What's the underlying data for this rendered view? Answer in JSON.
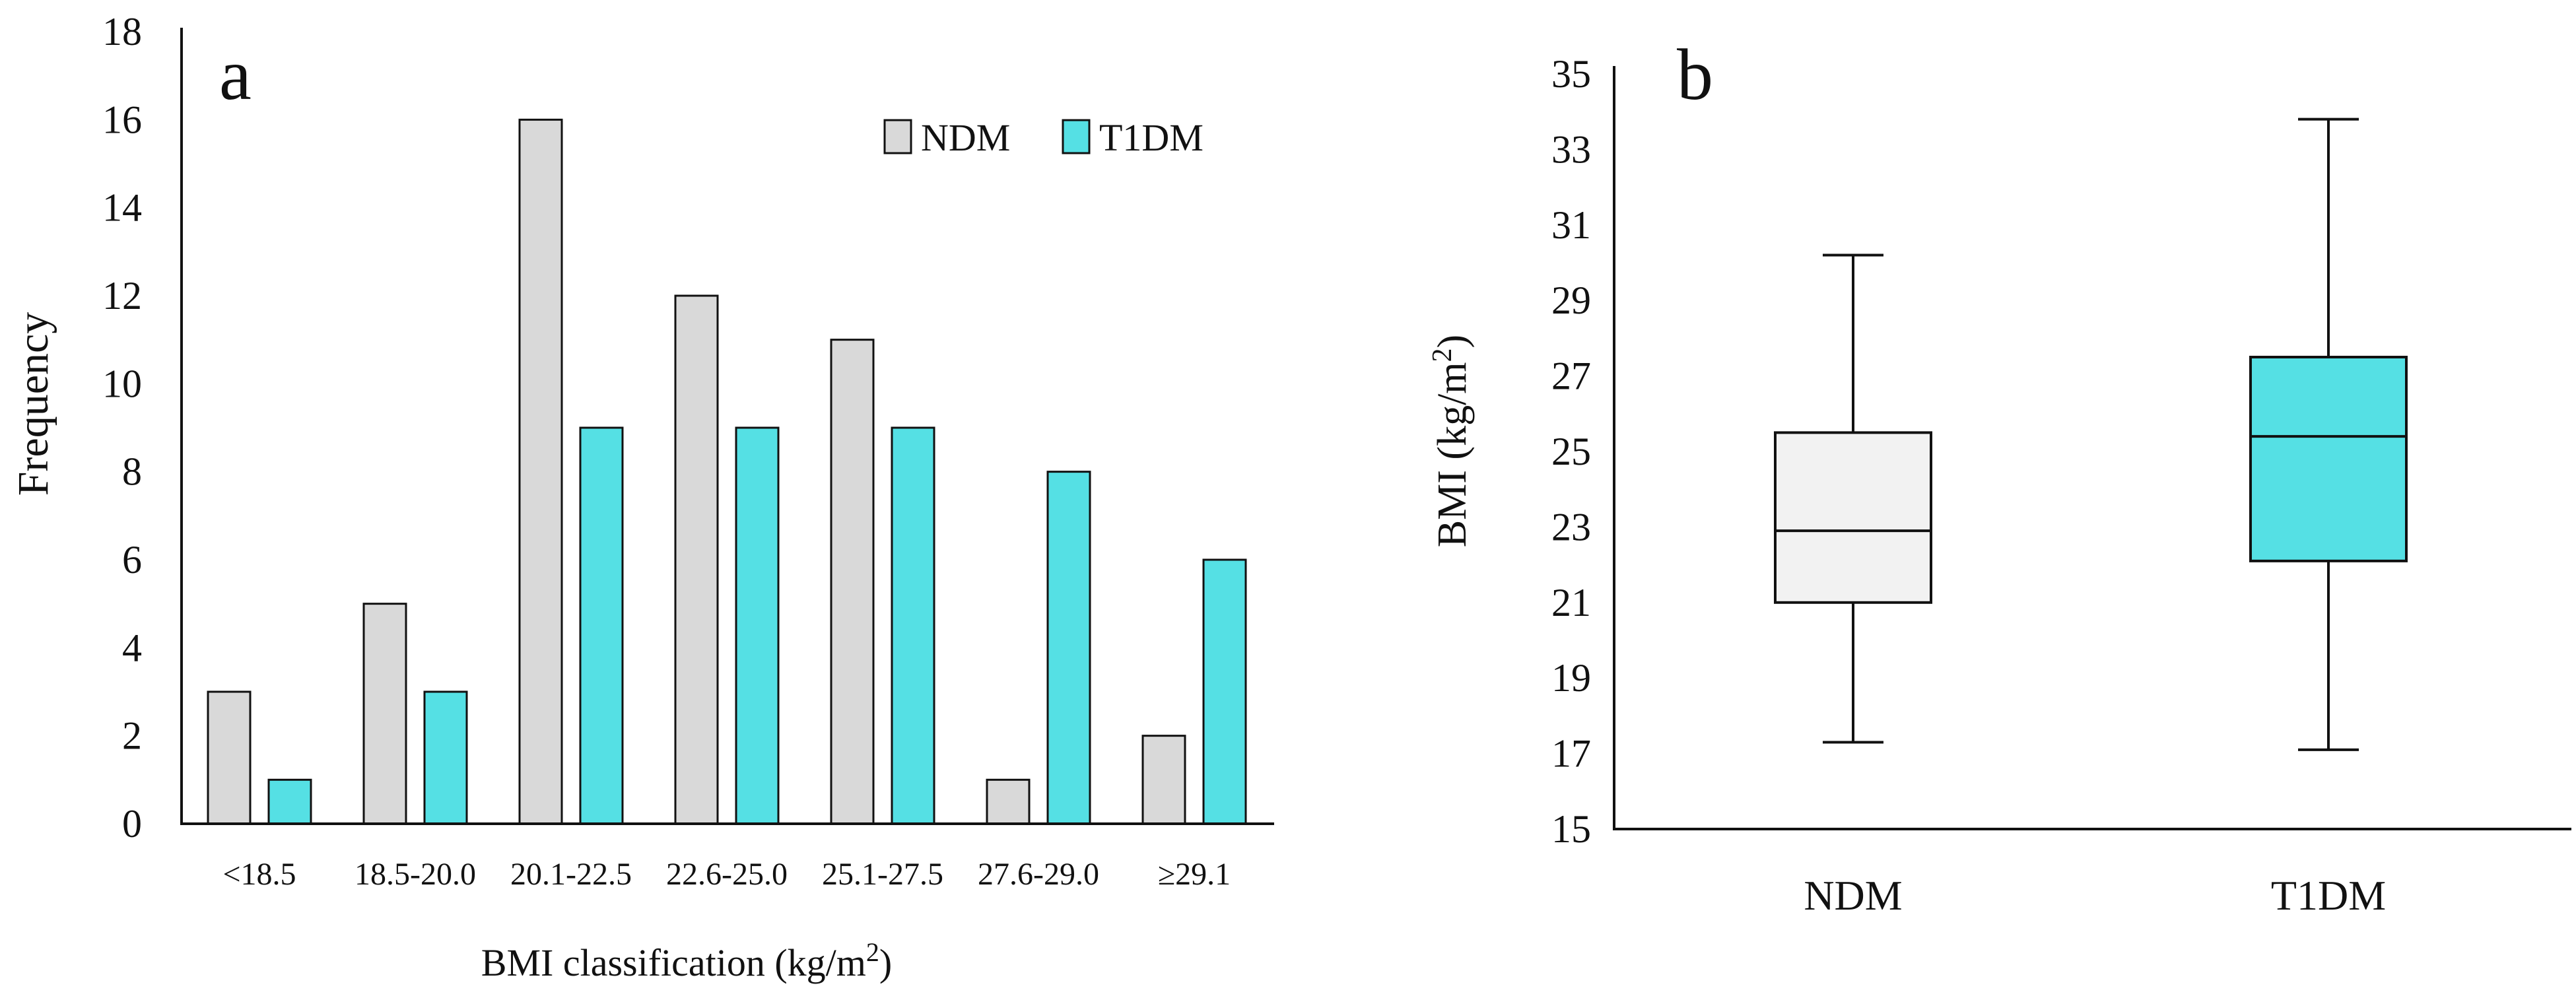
{
  "colors": {
    "ndm_bar": "#d9d9d9",
    "t1dm_bar": "#55e0e4",
    "ndm_box": "#f2f2f2",
    "t1dm_box": "#55e0e4",
    "stroke": "#111111"
  },
  "chart_data": [
    {
      "type": "bar",
      "panel_label": "a",
      "categories": [
        "<18.5",
        "18.5-20.0",
        "20.1-22.5",
        "22.6-25.0",
        "25.1-27.5",
        "27.6-29.0",
        "≥29.1"
      ],
      "series": [
        {
          "name": "NDM",
          "values": [
            3,
            5,
            16,
            12,
            11,
            1,
            2
          ]
        },
        {
          "name": "T1DM",
          "values": [
            1,
            3,
            9,
            9,
            9,
            8,
            6
          ]
        }
      ],
      "ylabel": "Frequency",
      "xlabel": "BMI classification (kg/m",
      "xlabel_superscript": "2",
      "xlabel_suffix": ")",
      "ylim": [
        0,
        18
      ],
      "yticks": [
        "0",
        "2",
        "4",
        "6",
        "8",
        "10",
        "12",
        "14",
        "16",
        "18"
      ],
      "legend_position": "top-right",
      "grid": false
    },
    {
      "type": "boxplot",
      "panel_label": "b",
      "categories": [
        "NDM",
        "T1DM"
      ],
      "boxes": [
        {
          "name": "NDM",
          "whisker_low": 17.3,
          "q1": 21.0,
          "median": 22.9,
          "q3": 25.5,
          "whisker_high": 30.2
        },
        {
          "name": "T1DM",
          "whisker_low": 17.1,
          "q1": 22.1,
          "median": 25.4,
          "q3": 27.5,
          "whisker_high": 33.8
        }
      ],
      "ylabel": "BMI  (kg/m",
      "ylabel_superscript": "2",
      "ylabel_suffix": ")",
      "ylim": [
        15,
        35
      ],
      "yticks": [
        "15",
        "17",
        "19",
        "21",
        "23",
        "25",
        "27",
        "29",
        "31",
        "33",
        "35"
      ],
      "grid": false
    }
  ]
}
